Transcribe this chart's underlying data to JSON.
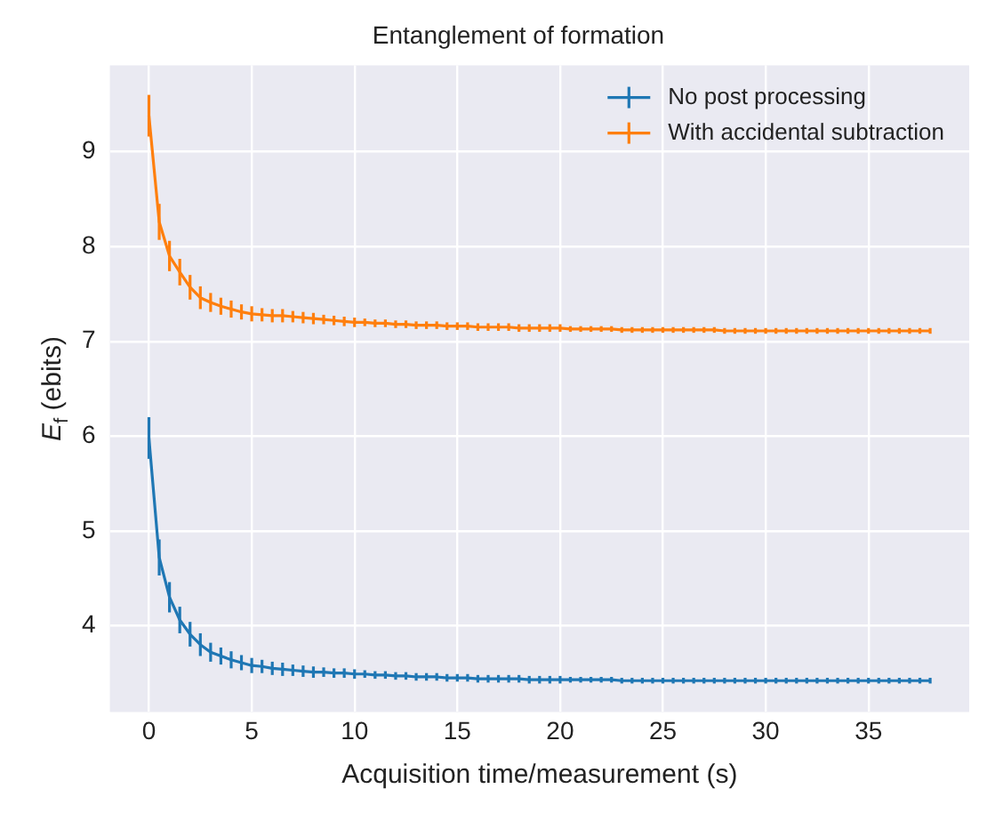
{
  "chart_data": {
    "type": "line",
    "title": "Entanglement of formation",
    "xlabel": "Acquisition time/measurement (s)",
    "ylabel": "E$_{f}$ (ebits)",
    "x": [
      0,
      0.5,
      1,
      1.5,
      2,
      2.5,
      3,
      3.5,
      4,
      4.5,
      5,
      5.5,
      6,
      6.5,
      7,
      7.5,
      8,
      8.5,
      9,
      9.5,
      10,
      10.5,
      11,
      11.5,
      12,
      12.5,
      13,
      13.5,
      14,
      14.5,
      15,
      15.5,
      16,
      16.5,
      17,
      17.5,
      18,
      18.5,
      19,
      19.5,
      20,
      20.5,
      21,
      21.5,
      22,
      22.5,
      23,
      23.5,
      24,
      24.5,
      25,
      25.5,
      26,
      26.5,
      27,
      27.5,
      28,
      28.5,
      29,
      29.5,
      30,
      30.5,
      31,
      31.5,
      32,
      32.5,
      33,
      33.5,
      34,
      34.5,
      35,
      35.5,
      36,
      36.5,
      37,
      37.5,
      38
    ],
    "series": [
      {
        "name": "No post processing",
        "color": "#1f77b4",
        "values": [
          5.98,
          4.72,
          4.3,
          4.06,
          3.91,
          3.8,
          3.72,
          3.68,
          3.64,
          3.61,
          3.58,
          3.57,
          3.55,
          3.54,
          3.53,
          3.52,
          3.51,
          3.51,
          3.5,
          3.5,
          3.49,
          3.49,
          3.48,
          3.48,
          3.47,
          3.47,
          3.46,
          3.46,
          3.46,
          3.45,
          3.45,
          3.45,
          3.44,
          3.44,
          3.44,
          3.44,
          3.44,
          3.43,
          3.43,
          3.43,
          3.43,
          3.43,
          3.43,
          3.43,
          3.43,
          3.43,
          3.42,
          3.42,
          3.42,
          3.42,
          3.42,
          3.42,
          3.42,
          3.42,
          3.42,
          3.42,
          3.42,
          3.42,
          3.42,
          3.42,
          3.42,
          3.42,
          3.42,
          3.42,
          3.42,
          3.42,
          3.42,
          3.42,
          3.42,
          3.42,
          3.42,
          3.42,
          3.42,
          3.42,
          3.42,
          3.42,
          3.42
        ],
        "errors": [
          0.22,
          0.19,
          0.16,
          0.14,
          0.13,
          0.12,
          0.1,
          0.09,
          0.09,
          0.08,
          0.08,
          0.07,
          0.07,
          0.07,
          0.06,
          0.06,
          0.06,
          0.05,
          0.05,
          0.05,
          0.05,
          0.04,
          0.04,
          0.04,
          0.04,
          0.04,
          0.04,
          0.04,
          0.04,
          0.04,
          0.04,
          0.04,
          0.04,
          0.04,
          0.04,
          0.04,
          0.04,
          0.04,
          0.04,
          0.04,
          0.04,
          0.03,
          0.03,
          0.03,
          0.03,
          0.03,
          0.03,
          0.03,
          0.03,
          0.03,
          0.03,
          0.03,
          0.03,
          0.03,
          0.03,
          0.03,
          0.03,
          0.03,
          0.03,
          0.03,
          0.03,
          0.03,
          0.03,
          0.03,
          0.03,
          0.03,
          0.03,
          0.03,
          0.03,
          0.03,
          0.03,
          0.03,
          0.03,
          0.03,
          0.03,
          0.03,
          0.03
        ]
      },
      {
        "name": "With accidental subtraction",
        "color": "#ff7f0e",
        "values": [
          9.38,
          8.26,
          7.9,
          7.73,
          7.57,
          7.46,
          7.41,
          7.37,
          7.34,
          7.31,
          7.29,
          7.28,
          7.27,
          7.27,
          7.26,
          7.25,
          7.24,
          7.23,
          7.22,
          7.21,
          7.2,
          7.2,
          7.19,
          7.19,
          7.18,
          7.18,
          7.17,
          7.17,
          7.17,
          7.16,
          7.16,
          7.16,
          7.15,
          7.15,
          7.15,
          7.15,
          7.14,
          7.14,
          7.14,
          7.14,
          7.14,
          7.13,
          7.13,
          7.13,
          7.13,
          7.13,
          7.12,
          7.12,
          7.12,
          7.12,
          7.12,
          7.12,
          7.12,
          7.12,
          7.12,
          7.12,
          7.11,
          7.11,
          7.11,
          7.11,
          7.11,
          7.11,
          7.11,
          7.11,
          7.11,
          7.11,
          7.11,
          7.11,
          7.11,
          7.11,
          7.11,
          7.11,
          7.11,
          7.11,
          7.11,
          7.11,
          7.11
        ],
        "errors": [
          0.22,
          0.19,
          0.16,
          0.14,
          0.13,
          0.12,
          0.1,
          0.09,
          0.09,
          0.08,
          0.08,
          0.07,
          0.07,
          0.07,
          0.06,
          0.06,
          0.06,
          0.05,
          0.05,
          0.05,
          0.05,
          0.04,
          0.04,
          0.04,
          0.04,
          0.04,
          0.04,
          0.04,
          0.04,
          0.04,
          0.04,
          0.04,
          0.04,
          0.04,
          0.04,
          0.04,
          0.04,
          0.04,
          0.04,
          0.04,
          0.04,
          0.03,
          0.03,
          0.03,
          0.03,
          0.03,
          0.03,
          0.03,
          0.03,
          0.03,
          0.03,
          0.03,
          0.03,
          0.03,
          0.03,
          0.03,
          0.03,
          0.03,
          0.03,
          0.03,
          0.03,
          0.03,
          0.03,
          0.03,
          0.03,
          0.03,
          0.03,
          0.03,
          0.03,
          0.03,
          0.03,
          0.03,
          0.03,
          0.03,
          0.03,
          0.03,
          0.03
        ]
      }
    ],
    "xlim": [
      -1.9,
      39.9
    ],
    "xticks": [
      0,
      5,
      10,
      15,
      20,
      25,
      30,
      35
    ],
    "ylim": [
      3.09,
      9.91
    ],
    "yticks": [
      4,
      5,
      6,
      7,
      8,
      9
    ],
    "grid": true,
    "legend": "top right",
    "marker": "none",
    "line_style": "solid"
  }
}
